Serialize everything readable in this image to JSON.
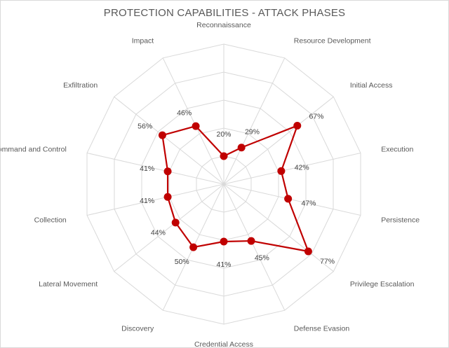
{
  "chart_data": {
    "type": "radar",
    "title": "PROTECTION CAPABILITIES - ATTACK PHASES",
    "categories": [
      "Reconnaissance",
      "Resource Development",
      "Initial Access",
      "Execution",
      "Persistence",
      "Privilege Escalation",
      "Defense Evasion",
      "Credential Access",
      "Discovery",
      "Lateral Movement",
      "Collection",
      "Command and Control",
      "Exfiltration",
      "Impact"
    ],
    "values": [
      20,
      29,
      67,
      42,
      47,
      77,
      45,
      41,
      50,
      44,
      41,
      41,
      56,
      46
    ],
    "value_labels": [
      "20%",
      "29%",
      "67%",
      "42%",
      "47%",
      "77%",
      "45%",
      "41%",
      "50%",
      "44%",
      "41%",
      "41%",
      "56%",
      "46%"
    ],
    "unit": "%",
    "rmin": 0,
    "rmax": 100,
    "grid_levels": 5,
    "grid": true,
    "legend": "none",
    "colors": {
      "series": "#c00000",
      "grid": "#d9d9d9",
      "text": "#595959"
    }
  }
}
